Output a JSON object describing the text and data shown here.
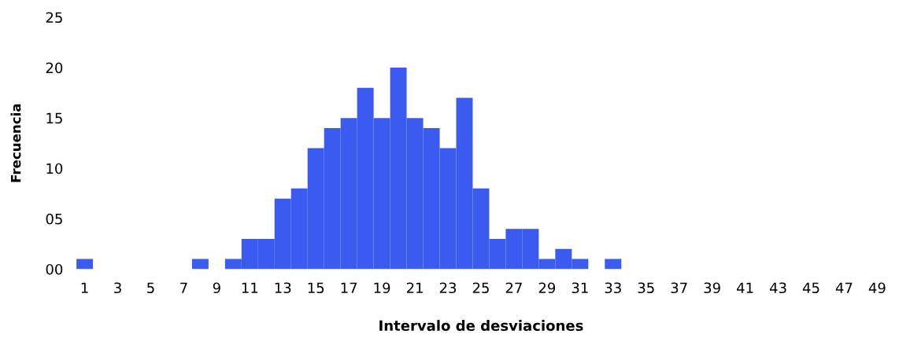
{
  "chart_data": {
    "type": "bar",
    "xlabel": "Intervalo de desviaciones",
    "ylabel": "Frecuencia",
    "categories": [
      "1",
      null,
      "3",
      null,
      "5",
      null,
      "7",
      null,
      "9",
      null,
      "11",
      null,
      "13",
      null,
      "15",
      null,
      "17",
      null,
      "19",
      null,
      "21",
      null,
      "23",
      null,
      "25",
      null,
      "27",
      null,
      "29",
      null,
      "31",
      null,
      "33",
      null,
      "35",
      null,
      "37",
      null,
      "39",
      null,
      "41",
      null,
      "43",
      null,
      "45",
      null,
      "47",
      null,
      "49"
    ],
    "values": [
      1,
      0,
      0,
      0,
      0,
      0,
      0,
      1,
      0,
      1,
      3,
      3,
      7,
      8,
      12,
      14,
      15,
      18,
      15,
      20,
      15,
      14,
      12,
      17,
      8,
      3,
      4,
      4,
      1,
      2,
      1,
      0,
      1,
      0,
      0,
      0,
      0,
      0,
      0,
      0,
      0,
      0,
      0,
      0,
      0,
      0,
      0,
      0,
      0
    ],
    "color": "#3b5af0",
    "ylim": [
      0,
      25
    ],
    "yticks": [
      {
        "value": 0,
        "label": "00"
      },
      {
        "value": 5,
        "label": "05"
      },
      {
        "value": 10,
        "label": "10"
      },
      {
        "value": 15,
        "label": "15"
      },
      {
        "value": 20,
        "label": "20"
      },
      {
        "value": 25,
        "label": "25"
      }
    ],
    "grid": false,
    "legend": false
  }
}
